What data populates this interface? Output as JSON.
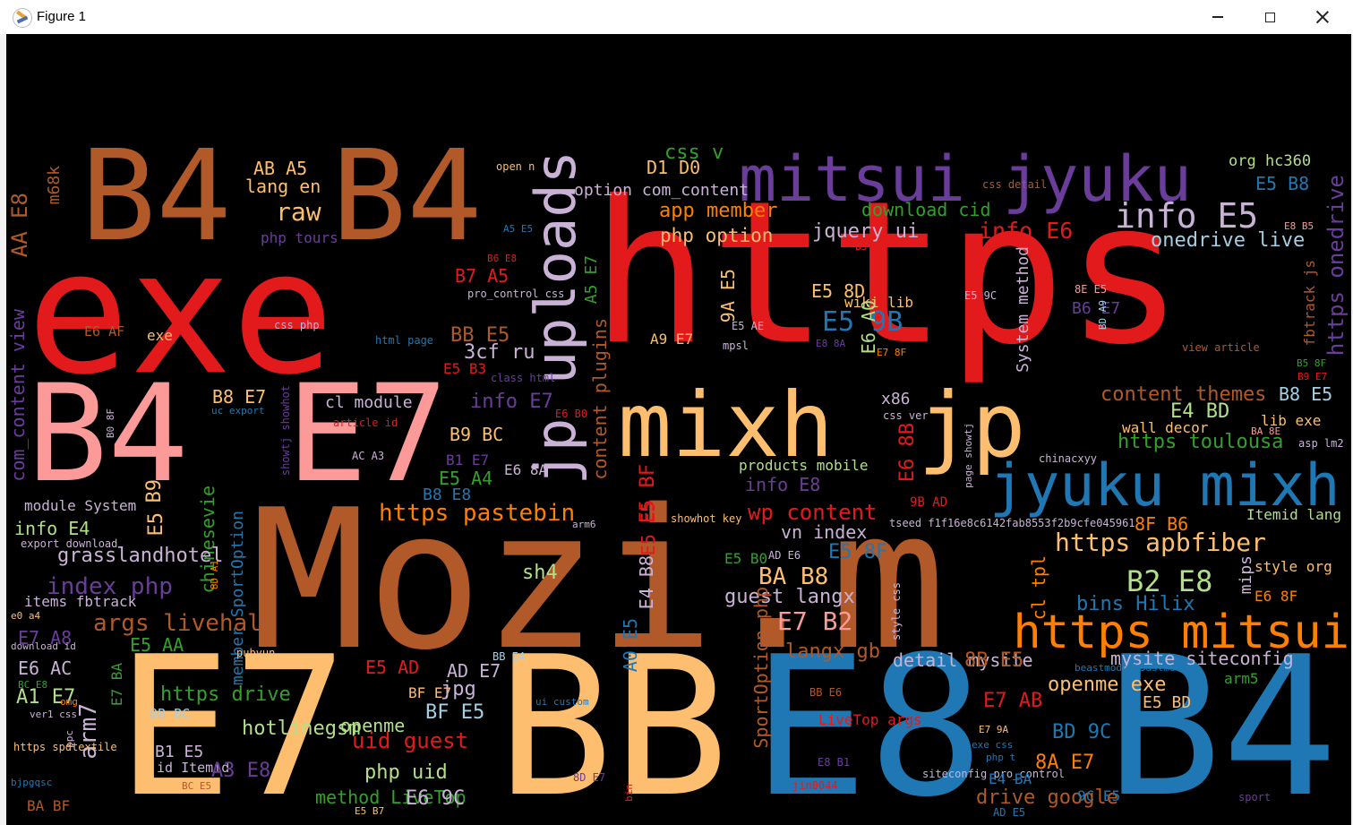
{
  "window": {
    "title": "Figure 1"
  },
  "words": [
    {
      "t": "exe",
      "c": "#e31a1c"
    },
    {
      "t": "https",
      "c": "#e31a1c"
    },
    {
      "t": "Mozi.m",
      "c": "#b15928"
    },
    {
      "t": "B4",
      "c": "#b15928"
    },
    {
      "t": "B4",
      "c": "#b15928"
    },
    {
      "t": "B4",
      "c": "#fb9a99"
    },
    {
      "t": "E7",
      "c": "#fb9a99"
    },
    {
      "t": "E7",
      "c": "#fdbf6f"
    },
    {
      "t": "BB",
      "c": "#fdbf6f"
    },
    {
      "t": "E8",
      "c": "#1f78b4"
    },
    {
      "t": "B4",
      "c": "#1f78b4"
    },
    {
      "t": "mitsui jyuku",
      "c": "#6a3d9a"
    },
    {
      "t": "mixh",
      "c": "#fdbf6f"
    },
    {
      "t": "jp",
      "c": "#fdbf6f"
    },
    {
      "t": "jyuku mixh",
      "c": "#1f78b4"
    },
    {
      "t": "https mitsui",
      "c": "#ff7f00"
    },
    {
      "t": "jp uploads",
      "c": "#cab2d6"
    },
    {
      "t": "info E5",
      "c": "#cab2d6"
    },
    {
      "t": "onedrive live",
      "c": "#a6cee3"
    },
    {
      "t": "https onedrive",
      "c": "#6a3d9a"
    },
    {
      "t": "org hc360",
      "c": "#b2df8a"
    },
    {
      "t": "E5 B8",
      "c": "#1f78b4"
    },
    {
      "t": "css detail",
      "c": "#b15928"
    },
    {
      "t": "E8 B5",
      "c": "#fb9a99"
    },
    {
      "t": "download cid",
      "c": "#33a02c"
    },
    {
      "t": "info E6",
      "c": "#e31a1c"
    },
    {
      "t": "app member",
      "c": "#ff7f00"
    },
    {
      "t": "php option",
      "c": "#fdbf6f"
    },
    {
      "t": "jquery ui",
      "c": "#cab2d6"
    },
    {
      "t": "css v",
      "c": "#33a02c"
    },
    {
      "t": "D1 D0",
      "c": "#fdbf6f"
    },
    {
      "t": "option com_content",
      "c": "#cab2d6"
    },
    {
      "t": "open n",
      "c": "#fdbf6f"
    },
    {
      "t": "AB A5",
      "c": "#fdbf6f"
    },
    {
      "t": "lang en",
      "c": "#fdbf6f"
    },
    {
      "t": "raw",
      "c": "#fdbf6f"
    },
    {
      "t": "php tours",
      "c": "#6a3d9a"
    },
    {
      "t": "m68k",
      "c": "#b15928"
    },
    {
      "t": "AA E8",
      "c": "#b15928"
    },
    {
      "t": "com_content view",
      "c": "#6a3d9a"
    },
    {
      "t": "E6 AF",
      "c": "#b15928"
    },
    {
      "t": "exe",
      "c": "#fdbf6f"
    },
    {
      "t": "css php",
      "c": "#cab2d6"
    },
    {
      "t": "html page",
      "c": "#1f78b4"
    },
    {
      "t": "B7 A5",
      "c": "#e31a1c"
    },
    {
      "t": "pro_control css",
      "c": "#cab2d6"
    },
    {
      "t": "B6 E8",
      "c": "#e31a1c"
    },
    {
      "t": "A5 E5",
      "c": "#1f78b4"
    },
    {
      "t": "BB E5",
      "c": "#b15928"
    },
    {
      "t": "3cf ru",
      "c": "#cab2d6"
    },
    {
      "t": "E5 B3",
      "c": "#e31a1c"
    },
    {
      "t": "class html",
      "c": "#6a3d9a"
    },
    {
      "t": "A5 E7",
      "c": "#33a02c"
    },
    {
      "t": "content plugins",
      "c": "#b15928"
    },
    {
      "t": "9A E5",
      "c": "#fdbf6f"
    },
    {
      "t": "A9 E7",
      "c": "#fdbf6f"
    },
    {
      "t": "E5 AE",
      "c": "#cab2d6"
    },
    {
      "t": "mpsl",
      "c": "#cab2d6"
    },
    {
      "t": "E5 9B",
      "c": "#1f78b4"
    },
    {
      "t": "E5 8D",
      "c": "#fdbf6f"
    },
    {
      "t": "wiki lib",
      "c": "#fdbf6f"
    },
    {
      "t": "E6 A0",
      "c": "#b2df8a"
    },
    {
      "t": "E8 8A",
      "c": "#6a3d9a"
    },
    {
      "t": "E7 8F",
      "c": "#ff7f00"
    },
    {
      "t": "B3 E4",
      "c": "#e31a1c"
    },
    {
      "t": "System method",
      "c": "#cab2d6"
    },
    {
      "t": "E5 9C",
      "c": "#cab2d6"
    },
    {
      "t": "8E E5",
      "c": "#fb9a99"
    },
    {
      "t": "B6 E7",
      "c": "#6a3d9a"
    },
    {
      "t": "BD A9",
      "c": "#a6cee3"
    },
    {
      "t": "fbtrack js",
      "c": "#b15928"
    },
    {
      "t": "view article",
      "c": "#b15928"
    },
    {
      "t": "content themes",
      "c": "#b15928"
    },
    {
      "t": "B8 E5",
      "c": "#a6cee3"
    },
    {
      "t": "B5 8F",
      "c": "#33a02c"
    },
    {
      "t": "B9 E7",
      "c": "#e31a1c"
    },
    {
      "t": "E4 BD",
      "c": "#b2df8a"
    },
    {
      "t": "lib exe",
      "c": "#fdbf6f"
    },
    {
      "t": "wall decor",
      "c": "#fdbf6f"
    },
    {
      "t": "BA 8E",
      "c": "#fb9a99"
    },
    {
      "t": "https toulousa",
      "c": "#33a02c"
    },
    {
      "t": "asp lm2",
      "c": "#cab2d6"
    },
    {
      "t": "chinacxyy",
      "c": "#cab2d6"
    },
    {
      "t": "x86",
      "c": "#cab2d6"
    },
    {
      "t": "css ver",
      "c": "#cab2d6"
    },
    {
      "t": "E6 8B",
      "c": "#e31a1c"
    },
    {
      "t": "page showtj",
      "c": "#cab2d6"
    },
    {
      "t": "9B AD",
      "c": "#e31a1c"
    },
    {
      "t": "B8 E7",
      "c": "#fdbf6f"
    },
    {
      "t": "cl module",
      "c": "#cab2d6"
    },
    {
      "t": "info E7",
      "c": "#6a3d9a"
    },
    {
      "t": "E6 B0",
      "c": "#e31a1c"
    },
    {
      "t": "uc export",
      "c": "#1f78b4"
    },
    {
      "t": "article id",
      "c": "#e31a1c"
    },
    {
      "t": "showtj showhot",
      "c": "#6a3d9a"
    },
    {
      "t": "B0 8F",
      "c": "#cab2d6"
    },
    {
      "t": "AC A3",
      "c": "#cab2d6"
    },
    {
      "t": "B9 BC",
      "c": "#fdbf6f"
    },
    {
      "t": "B1 E7",
      "c": "#6a3d9a"
    },
    {
      "t": "E5 A4",
      "c": "#33a02c"
    },
    {
      "t": "E6 8A",
      "c": "#cab2d6"
    },
    {
      "t": "B8 E8",
      "c": "#1f78b4"
    },
    {
      "t": "E5 BF",
      "c": "#e31a1c"
    },
    {
      "t": "products mobile",
      "c": "#b2df8a"
    },
    {
      "t": "info E8",
      "c": "#6a3d9a"
    },
    {
      "t": "tseed f1f16e8c6142fab8553f2b9cfe045961",
      "c": "#cab2d6"
    },
    {
      "t": "8F B6",
      "c": "#ff7f00"
    },
    {
      "t": "Itemid lang",
      "c": "#b2df8a"
    },
    {
      "t": "wp content",
      "c": "#e31a1c"
    },
    {
      "t": "https pastebin",
      "c": "#ff7f00"
    },
    {
      "t": "E5 E5",
      "c": "#e31a1c"
    },
    {
      "t": "showhot key",
      "c": "#fdbf6f"
    },
    {
      "t": "arm6",
      "c": "#cab2d6"
    },
    {
      "t": "vn index",
      "c": "#cab2d6"
    },
    {
      "t": "https apbfiber",
      "c": "#fdbf6f"
    },
    {
      "t": "E5 8F",
      "c": "#1f78b4"
    },
    {
      "t": "E5 B0",
      "c": "#33a02c"
    },
    {
      "t": "AD E6",
      "c": "#cab2d6"
    },
    {
      "t": "cl tpl",
      "c": "#ff7f00"
    },
    {
      "t": "B2 E8",
      "c": "#b2df8a"
    },
    {
      "t": "style org",
      "c": "#fdbf6f"
    },
    {
      "t": "mips",
      "c": "#cab2d6"
    },
    {
      "t": "E6 8F",
      "c": "#ff7f00"
    },
    {
      "t": "bins Hilix",
      "c": "#1f78b4"
    },
    {
      "t": "BA B8",
      "c": "#fdbf6f"
    },
    {
      "t": "guest langx",
      "c": "#cab2d6"
    },
    {
      "t": "E7 B2",
      "c": "#fb9a99"
    },
    {
      "t": "langx gb",
      "c": "#b15928"
    },
    {
      "t": "sh4",
      "c": "#b2df8a"
    },
    {
      "t": "E4 B8",
      "c": "#cab2d6"
    },
    {
      "t": "A0 E5",
      "c": "#1f78b4"
    },
    {
      "t": "SportOption php",
      "c": "#b15928"
    },
    {
      "t": "style css",
      "c": "#cab2d6"
    },
    {
      "t": "chinesevie",
      "c": "#33a02c"
    },
    {
      "t": "member SportOption",
      "c": "#1f78b4"
    },
    {
      "t": "8D A1",
      "c": "#ff7f00"
    },
    {
      "t": "module System",
      "c": "#cab2d6"
    },
    {
      "t": "B9",
      "c": "#fdbf6f"
    },
    {
      "t": "E5",
      "c": "#fdbf6f"
    },
    {
      "t": "info E4",
      "c": "#b2df8a"
    },
    {
      "t": "export download",
      "c": "#cab2d6"
    },
    {
      "t": "grasslandhotel",
      "c": "#cab2d6"
    },
    {
      "t": "index php",
      "c": "#6a3d9a"
    },
    {
      "t": "items fbtrack",
      "c": "#cab2d6"
    },
    {
      "t": "E7 A8",
      "c": "#6a3d9a"
    },
    {
      "t": "e0 a4",
      "c": "#fdbf6f"
    },
    {
      "t": "download id",
      "c": "#cab2d6"
    },
    {
      "t": "args livehall",
      "c": "#b15928"
    },
    {
      "t": "E5 AA",
      "c": "#33a02c"
    },
    {
      "t": "pubyun",
      "c": "#fdbf6f"
    },
    {
      "t": "E6 AC",
      "c": "#cab2d6"
    },
    {
      "t": "BC E8",
      "c": "#33a02c"
    },
    {
      "t": "A1 E7",
      "c": "#b2df8a"
    },
    {
      "t": "omg",
      "c": "#ff7f00"
    },
    {
      "t": "ver1 css",
      "c": "#cab2d6"
    },
    {
      "t": "arm7",
      "c": "#cab2d6"
    },
    {
      "t": "E7 BA",
      "c": "#33a02c"
    },
    {
      "t": "https spdtextile",
      "c": "#fdbf6f"
    },
    {
      "t": "ppc",
      "c": "#cab2d6"
    },
    {
      "t": "bjpgqsc",
      "c": "#1f78b4"
    },
    {
      "t": "BA BF",
      "c": "#b15928"
    },
    {
      "t": "https drive",
      "c": "#33a02c"
    },
    {
      "t": "hotlinegsm",
      "c": "#b2df8a"
    },
    {
      "t": "8B BC",
      "c": "#a6cee3"
    },
    {
      "t": "B1 E5",
      "c": "#cab2d6"
    },
    {
      "t": "id Itemid",
      "c": "#cab2d6"
    },
    {
      "t": "A3 E8",
      "c": "#6a3d9a"
    },
    {
      "t": "BC E5",
      "c": "#b15928"
    },
    {
      "t": "method LiveTop",
      "c": "#33a02c"
    },
    {
      "t": "E5 B7",
      "c": "#fdbf6f"
    },
    {
      "t": "E6 9C",
      "c": "#cab2d6"
    },
    {
      "t": "php uid",
      "c": "#b2df8a"
    },
    {
      "t": "uid guest",
      "c": "#e31a1c"
    },
    {
      "t": "openme",
      "c": "#b2df8a"
    },
    {
      "t": "BF E5",
      "c": "#a6cee3"
    },
    {
      "t": "BF E7",
      "c": "#fdbf6f"
    },
    {
      "t": "jpg",
      "c": "#cab2d6"
    },
    {
      "t": "E5 AD",
      "c": "#e31a1c"
    },
    {
      "t": "AD E7",
      "c": "#cab2d6"
    },
    {
      "t": "BB E4",
      "c": "#a6cee3"
    },
    {
      "t": "ui custom",
      "c": "#1f78b4"
    },
    {
      "t": "8D E7",
      "c": "#6a3d9a"
    },
    {
      "t": "bin",
      "c": "#e31a1c"
    },
    {
      "t": "BB E6",
      "c": "#b15928"
    },
    {
      "t": "LiveTop args",
      "c": "#e31a1c"
    },
    {
      "t": "E8 B1",
      "c": "#6a3d9a"
    },
    {
      "t": "jin0044",
      "c": "#e31a1c"
    },
    {
      "t": "detail mysite",
      "c": "#cab2d6"
    },
    {
      "t": "8B E5",
      "c": "#b15928"
    },
    {
      "t": "E7 AB",
      "c": "#e31a1c"
    },
    {
      "t": "openme exe",
      "c": "#fdbf6f"
    },
    {
      "t": "BD 9C",
      "c": "#1f78b4"
    },
    {
      "t": "E7 9A",
      "c": "#fdbf6f"
    },
    {
      "t": "exe css",
      "c": "#1f78b4"
    },
    {
      "t": "siteconfig pro_control",
      "c": "#cab2d6"
    },
    {
      "t": "php t",
      "c": "#1f78b4"
    },
    {
      "t": "8A E7",
      "c": "#ff7f00"
    },
    {
      "t": "E4 BA",
      "c": "#1f78b4"
    },
    {
      "t": "drive google",
      "c": "#b15928"
    },
    {
      "t": "9C E5",
      "c": "#1f78b4"
    },
    {
      "t": "AD E5",
      "c": "#1f78b4"
    },
    {
      "t": "mysite siteconfig",
      "c": "#cab2d6"
    },
    {
      "t": "beastmode b3astmode",
      "c": "#1f78b4"
    },
    {
      "t": "arm5",
      "c": "#33a02c"
    },
    {
      "t": "E5 BD",
      "c": "#fdbf6f"
    },
    {
      "t": "sport",
      "c": "#6a3d9a"
    },
    {
      "t": "D0 B0",
      "c": "#e31a1c"
    }
  ]
}
